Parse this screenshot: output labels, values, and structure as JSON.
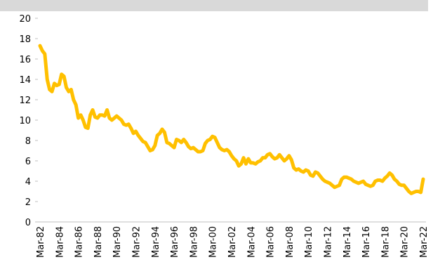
{
  "chart_data": {
    "type": "line",
    "categories": [
      "Mar-82",
      null,
      null,
      null,
      null,
      null,
      null,
      null,
      "Mar-84",
      null,
      null,
      null,
      null,
      null,
      null,
      null,
      "Mar-86",
      null,
      null,
      null,
      null,
      null,
      null,
      null,
      "Mar-88",
      null,
      null,
      null,
      null,
      null,
      null,
      null,
      "Mar-90",
      null,
      null,
      null,
      null,
      null,
      null,
      null,
      "Mar-92",
      null,
      null,
      null,
      null,
      null,
      null,
      null,
      "Mar-94",
      null,
      null,
      null,
      null,
      null,
      null,
      null,
      "Mar-96",
      null,
      null,
      null,
      null,
      null,
      null,
      null,
      "Mar-98",
      null,
      null,
      null,
      null,
      null,
      null,
      null,
      "Mar-00",
      null,
      null,
      null,
      null,
      null,
      null,
      null,
      "Mar-02",
      null,
      null,
      null,
      null,
      null,
      null,
      null,
      "Mar-04",
      null,
      null,
      null,
      null,
      null,
      null,
      null,
      "Mar-06",
      null,
      null,
      null,
      null,
      null,
      null,
      null,
      "Mar-08",
      null,
      null,
      null,
      null,
      null,
      null,
      null,
      "Mar-10",
      null,
      null,
      null,
      null,
      null,
      null,
      null,
      "Mar-12",
      null,
      null,
      null,
      null,
      null,
      null,
      null,
      "Mar-14",
      null,
      null,
      null,
      null,
      null,
      null,
      null,
      "Mar-16",
      null,
      null,
      null,
      null,
      null,
      null,
      null,
      "Mar-18",
      null,
      null,
      null,
      null,
      null,
      null,
      null,
      "Mar-20",
      null,
      null,
      null,
      null,
      null,
      null,
      null,
      "Mar-22"
    ],
    "series": [
      {
        "color": "#ffc000",
        "values": [
          17.3,
          16.8,
          16.5,
          14,
          13,
          12.8,
          13.6,
          13.4,
          13.5,
          14.5,
          14.3,
          13.2,
          12.8,
          13,
          12,
          11.5,
          10.2,
          10.5,
          10,
          9.3,
          9.2,
          10.5,
          11,
          10.3,
          10.2,
          10.5,
          10.5,
          10.4,
          11,
          10.2,
          10,
          10.2,
          10.4,
          10.2,
          10,
          9.6,
          9.5,
          9.6,
          9.2,
          8.7,
          8.9,
          8.5,
          8.2,
          7.9,
          7.8,
          7.4,
          7,
          7.1,
          7.5,
          8.5,
          8.7,
          9.1,
          8.8,
          7.8,
          7.7,
          7.5,
          7.3,
          8.1,
          8,
          7.8,
          8.1,
          7.8,
          7.4,
          7.2,
          7.3,
          7.1,
          6.9,
          6.9,
          7,
          7.7,
          8,
          8.1,
          8.4,
          8.3,
          7.8,
          7.3,
          7.1,
          7,
          7.1,
          6.9,
          6.5,
          6.2,
          6,
          5.5,
          5.7,
          6.3,
          5.7,
          6.2,
          5.8,
          5.8,
          5.7,
          5.9,
          6,
          6.3,
          6.3,
          6.6,
          6.7,
          6.4,
          6.2,
          6.3,
          6.6,
          6.3,
          6,
          6.2,
          6.5,
          6.1,
          5.3,
          5.1,
          5.2,
          5,
          4.9,
          5.1,
          5,
          4.6,
          4.5,
          4.9,
          4.8,
          4.5,
          4.2,
          4,
          3.9,
          3.8,
          3.6,
          3.4,
          3.5,
          3.6,
          4.2,
          4.4,
          4.4,
          4.3,
          4.2,
          4,
          3.9,
          3.8,
          3.9,
          4,
          3.7,
          3.6,
          3.5,
          3.6,
          4,
          4.1,
          4.1,
          4,
          4.3,
          4.5,
          4.8,
          4.6,
          4.2,
          4,
          3.7,
          3.6,
          3.6,
          3.3,
          3,
          2.8,
          2.9,
          3,
          3,
          2.9,
          4.2
        ]
      }
    ],
    "ylim": [
      0,
      20
    ],
    "yticks": [
      0,
      2,
      4,
      6,
      8,
      10,
      12,
      14,
      16,
      18,
      20
    ]
  }
}
